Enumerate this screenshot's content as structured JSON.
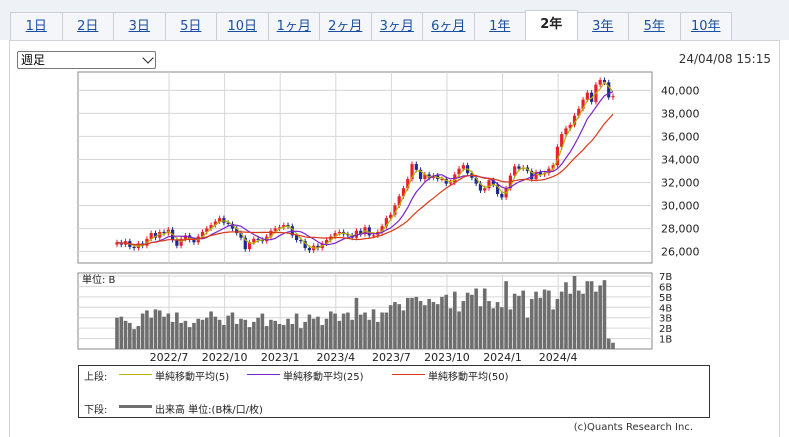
{
  "tabs": [
    {
      "label": "1日"
    },
    {
      "label": "2日"
    },
    {
      "label": "3日"
    },
    {
      "label": "5日"
    },
    {
      "label": "10日"
    },
    {
      "label": "1ヶ月"
    },
    {
      "label": "2ヶ月"
    },
    {
      "label": "3ヶ月"
    },
    {
      "label": "6ヶ月"
    },
    {
      "label": "1年"
    },
    {
      "label": "2年",
      "active": true
    },
    {
      "label": "3年"
    },
    {
      "label": "5年"
    },
    {
      "label": "10年"
    }
  ],
  "period_select": {
    "value": "週足"
  },
  "timestamp": "24/04/08 15:15",
  "legend": {
    "upper_label": "上段:",
    "lower_label": "下段:",
    "ma5": "単純移動平均(5)",
    "ma25": "単純移動平均(25)",
    "ma50": "単純移動平均(50)",
    "volume": "出来高 単位:(B株/口/枚)"
  },
  "copyright": "(c)Quants Research Inc.",
  "colors": {
    "up": "#e8202a",
    "down": "#1e2a8a",
    "ma5": "#b8b000",
    "ma25": "#7a24c8",
    "ma50": "#d83a18",
    "volume": "#6e6e6e"
  },
  "chart_data": {
    "type": "candlestick",
    "price_axis": {
      "ticks": [
        "40,000",
        "38,000",
        "36,000",
        "34,000",
        "32,000",
        "30,000",
        "28,000",
        "26,000"
      ],
      "ylim": [
        25000,
        41600
      ]
    },
    "volume_axis": {
      "label": "単位: B",
      "ticks": [
        "7B",
        "6B",
        "5B",
        "4B",
        "3B",
        "2B",
        "1B"
      ],
      "ylim": [
        0,
        7
      ]
    },
    "x_ticks": [
      "2022/7",
      "2022/10",
      "2023/1",
      "2023/4",
      "2023/7",
      "2023/10",
      "2024/1",
      "2024/4"
    ],
    "candles_close": [
      26800,
      26600,
      26900,
      26400,
      26300,
      26700,
      26500,
      27100,
      27600,
      27200,
      27700,
      27600,
      27900,
      27000,
      26500,
      27100,
      27400,
      27000,
      26800,
      27300,
      27700,
      28000,
      28300,
      28600,
      28900,
      28500,
      28400,
      28000,
      27600,
      27200,
      26200,
      26800,
      27100,
      27000,
      26900,
      27300,
      27800,
      28000,
      28100,
      28300,
      28200,
      27400,
      27000,
      26900,
      26300,
      26100,
      26500,
      26300,
      26700,
      27000,
      27300,
      27600,
      27700,
      27500,
      27400,
      27200,
      27800,
      27500,
      28100,
      27400,
      27400,
      27700,
      28200,
      28900,
      29200,
      30000,
      30800,
      31500,
      32300,
      33600,
      33100,
      32300,
      32700,
      32400,
      32600,
      32300,
      32300,
      31900,
      32000,
      32700,
      33200,
      33500,
      32800,
      32400,
      31900,
      31300,
      31500,
      32200,
      31800,
      31000,
      30700,
      31500,
      32600,
      33400,
      33200,
      33300,
      33000,
      32300,
      32900,
      32700,
      32800,
      33200,
      33500,
      35100,
      36200,
      36700,
      37000,
      37800,
      38400,
      39200,
      39800,
      39000,
      40500,
      40900,
      40700,
      39400,
      39500
    ],
    "volume_B": [
      3.0,
      3.1,
      2.7,
      2.5,
      1.9,
      2.2,
      3.4,
      3.7,
      3.0,
      3.8,
      3.7,
      3.1,
      3.4,
      2.6,
      3.5,
      2.5,
      2.7,
      2.1,
      2.5,
      2.9,
      2.8,
      3.0,
      3.6,
      3.1,
      2.8,
      2.3,
      3.2,
      3.5,
      2.4,
      2.9,
      2.8,
      2.1,
      2.6,
      3.0,
      3.4,
      2.2,
      2.8,
      2.7,
      2.4,
      2.3,
      2.9,
      2.4,
      3.4,
      2.0,
      2.6,
      3.3,
      2.9,
      3.1,
      2.3,
      2.9,
      3.6,
      3.4,
      2.7,
      3.4,
      3.5,
      2.8,
      4.9,
      3.3,
      3.5,
      2.8,
      3.8,
      2.6,
      3.5,
      3.5,
      4.2,
      4.5,
      4.3,
      3.7,
      4.9,
      4.9,
      5.0,
      4.6,
      4.2,
      4.8,
      4.5,
      4.3,
      5.0,
      5.2,
      3.9,
      5.5,
      3.6,
      4.6,
      5.4,
      5.2,
      5.8,
      4.1,
      5.8,
      4.6,
      3.9,
      4.5,
      4.0,
      6.5,
      3.8,
      5.3,
      5.1,
      5.6,
      3.0,
      4.8,
      5.5,
      4.9,
      5.7,
      5.6,
      3.8,
      4.8,
      5.5,
      6.4,
      5.3,
      7.0,
      5.6,
      5.3,
      6.5,
      6.5,
      5.5,
      6.1,
      6.6,
      1.0,
      0.6
    ]
  }
}
